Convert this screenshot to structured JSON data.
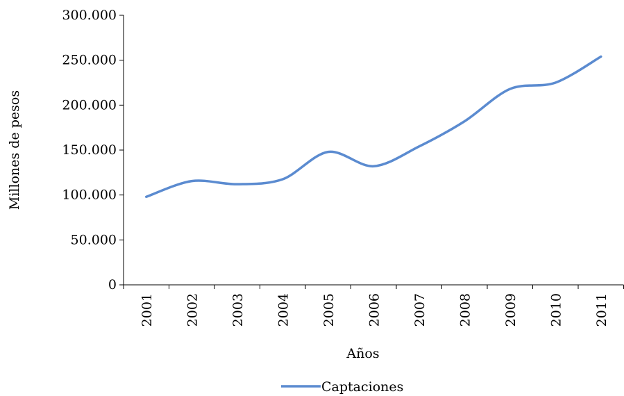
{
  "chart_data": {
    "type": "line",
    "title": "",
    "xlabel": "Años",
    "ylabel": "Millones de pesos",
    "categories": [
      "2001",
      "2002",
      "2003",
      "2004",
      "2005",
      "2006",
      "2007",
      "2008",
      "2009",
      "2010",
      "2011"
    ],
    "series": [
      {
        "name": "Captaciones",
        "color": "#5b8bd0",
        "values": [
          98000,
          115500,
          112000,
          117500,
          148000,
          132000,
          154000,
          182000,
          218000,
          225000,
          254000
        ]
      }
    ],
    "ylim": [
      0,
      300000
    ],
    "yticks": [
      0,
      50000,
      100000,
      150000,
      200000,
      250000,
      300000
    ],
    "ytick_labels": [
      "0",
      "50.000",
      "100.000",
      "150.000",
      "200.000",
      "250.000",
      "300.000"
    ],
    "smooth": true,
    "grid": false,
    "legend_position": "bottom"
  }
}
